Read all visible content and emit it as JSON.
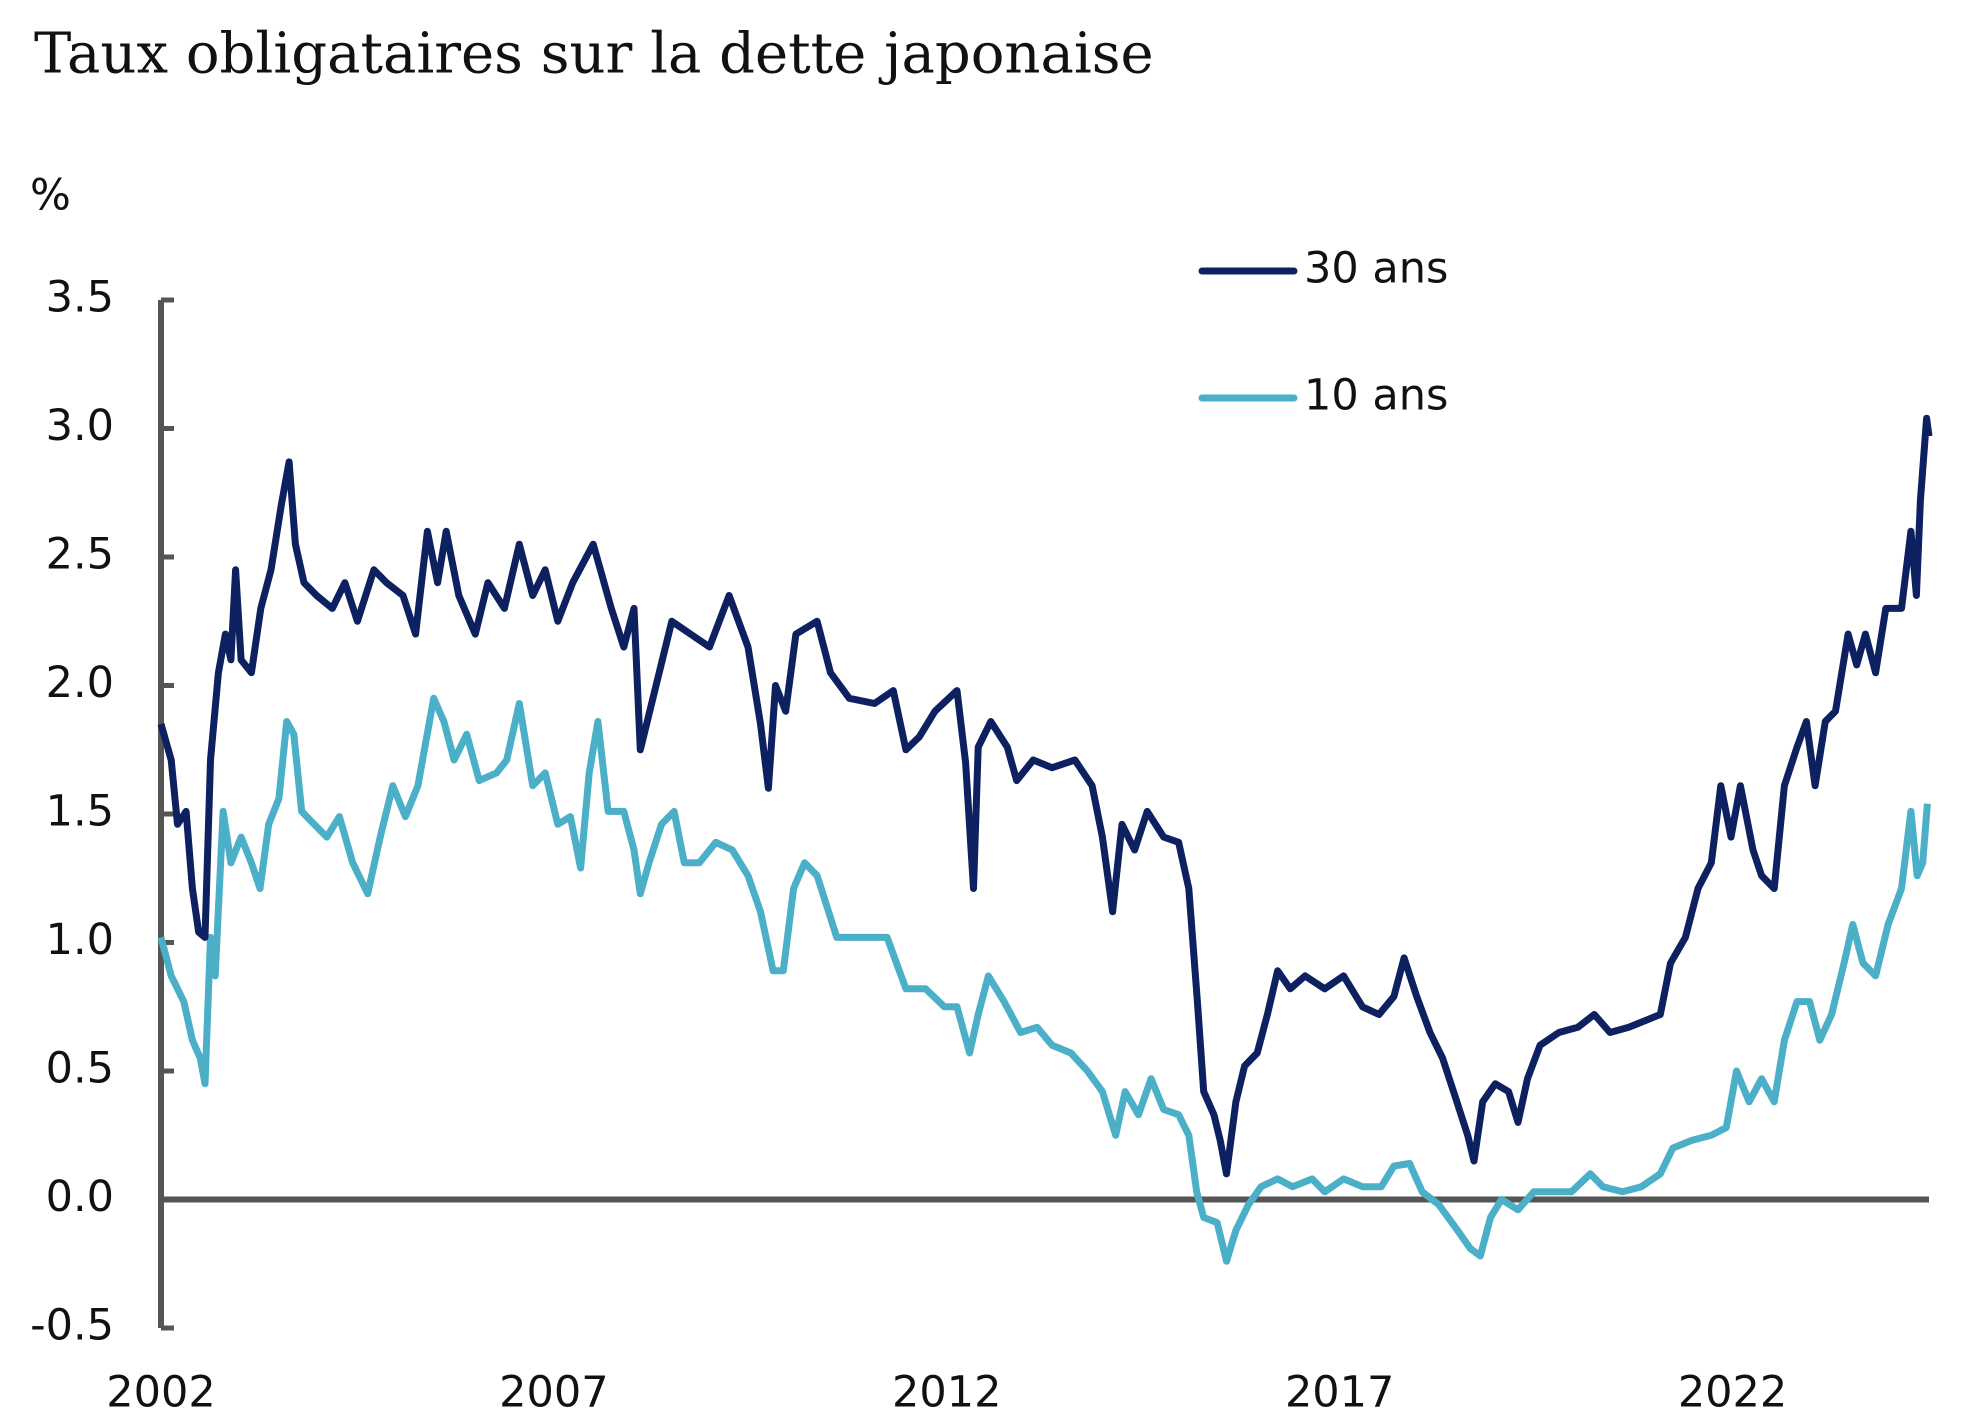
{
  "chart_data": {
    "type": "line",
    "title": "Taux obligataires sur la dette japonaise",
    "y_label": "%",
    "xlim": [
      2002,
      2024.5
    ],
    "xticks": [
      2002,
      2007,
      2012,
      2017,
      2022
    ],
    "ylim": [
      -0.5,
      3.5
    ],
    "yticks": [
      -0.5,
      {
        "value": 0,
        "label": "0.0"
      },
      0.5,
      {
        "value": 1,
        "label": "1.0"
      },
      1.5,
      {
        "value": 2,
        "label": "2.0"
      },
      2.5,
      {
        "value": 3,
        "label": "3.0"
      },
      3.5
    ],
    "grid": false,
    "legend": "upper right",
    "series": [
      {
        "name": "30 ans",
        "color": "#0d2160",
        "x": [
          2002.0,
          2002.13,
          2002.21,
          2002.32,
          2002.4,
          2002.48,
          2002.56,
          2002.63,
          2002.73,
          2002.82,
          2002.89,
          2002.95,
          2003.02,
          2003.15,
          2003.27,
          2003.4,
          2003.53,
          2003.63,
          2003.71,
          2003.82,
          2003.98,
          2004.18,
          2004.34,
          2004.5,
          2004.71,
          2004.87,
          2005.08,
          2005.24,
          2005.39,
          2005.52,
          2005.63,
          2005.79,
          2006.0,
          2006.16,
          2006.37,
          2006.56,
          2006.73,
          2006.89,
          2007.05,
          2007.24,
          2007.5,
          2007.73,
          2007.89,
          2008.02,
          2008.1,
          2008.26,
          2008.5,
          2008.74,
          2008.98,
          2009.23,
          2009.47,
          2009.63,
          2009.73,
          2009.82,
          2009.95,
          2010.08,
          2010.35,
          2010.52,
          2010.76,
          2011.08,
          2011.32,
          2011.48,
          2011.65,
          2011.85,
          2012.13,
          2012.24,
          2012.34,
          2012.4,
          2012.56,
          2012.77,
          2012.89,
          2013.1,
          2013.34,
          2013.63,
          2013.85,
          2013.98,
          2014.11,
          2014.23,
          2014.39,
          2014.55,
          2014.76,
          2014.95,
          2015.08,
          2015.19,
          2015.27,
          2015.4,
          2015.48,
          2015.56,
          2015.68,
          2015.79,
          2015.95,
          2016.08,
          2016.21,
          2016.37,
          2016.56,
          2016.81,
          2017.05,
          2017.29,
          2017.5,
          2017.69,
          2017.82,
          2017.98,
          2018.15,
          2018.31,
          2018.47,
          2018.63,
          2018.71,
          2018.82,
          2018.98,
          2019.15,
          2019.27,
          2019.39,
          2019.55,
          2019.79,
          2020.03,
          2020.24,
          2020.44,
          2020.68,
          2020.92,
          2021.08,
          2021.21,
          2021.4,
          2021.56,
          2021.73,
          2021.85,
          2021.98,
          2022.1,
          2022.26,
          2022.37,
          2022.53,
          2022.66,
          2022.82,
          2022.94,
          2023.05,
          2023.18,
          2023.31,
          2023.47,
          2023.58,
          2023.69,
          2023.82,
          2023.95,
          2024.15,
          2024.27,
          2024.34,
          2024.39,
          2024.47,
          2024.5
        ],
        "values": [
          1.85,
          1.71,
          1.46,
          1.51,
          1.21,
          1.04,
          1.02,
          1.71,
          2.05,
          2.2,
          2.1,
          2.45,
          2.1,
          2.05,
          2.3,
          2.45,
          2.7,
          2.87,
          2.55,
          2.4,
          2.35,
          2.3,
          2.4,
          2.25,
          2.45,
          2.4,
          2.35,
          2.2,
          2.6,
          2.4,
          2.6,
          2.35,
          2.2,
          2.4,
          2.3,
          2.55,
          2.35,
          2.45,
          2.25,
          2.4,
          2.55,
          2.3,
          2.15,
          2.3,
          1.75,
          1.95,
          2.25,
          2.2,
          2.15,
          2.35,
          2.15,
          1.85,
          1.6,
          2.0,
          1.9,
          2.2,
          2.25,
          2.05,
          1.95,
          1.93,
          1.98,
          1.75,
          1.8,
          1.9,
          1.98,
          1.7,
          1.21,
          1.76,
          1.86,
          1.76,
          1.63,
          1.71,
          1.68,
          1.71,
          1.61,
          1.41,
          1.12,
          1.46,
          1.36,
          1.51,
          1.41,
          1.39,
          1.21,
          0.77,
          0.42,
          0.33,
          0.23,
          0.1,
          0.38,
          0.52,
          0.57,
          0.72,
          0.89,
          0.82,
          0.87,
          0.82,
          0.87,
          0.75,
          0.72,
          0.79,
          0.94,
          0.79,
          0.65,
          0.55,
          0.4,
          0.25,
          0.15,
          0.38,
          0.45,
          0.42,
          0.3,
          0.47,
          0.6,
          0.65,
          0.67,
          0.72,
          0.65,
          0.67,
          0.7,
          0.72,
          0.92,
          1.02,
          1.21,
          1.31,
          1.61,
          1.41,
          1.61,
          1.36,
          1.26,
          1.21,
          1.61,
          1.76,
          1.86,
          1.61,
          1.86,
          1.9,
          2.2,
          2.08,
          2.2,
          2.05,
          2.3,
          2.3,
          2.6,
          2.35,
          2.72,
          3.04,
          2.97
        ]
      },
      {
        "name": "10 ans",
        "color": "#4bafc8",
        "x": [
          2002.0,
          2002.13,
          2002.29,
          2002.4,
          2002.5,
          2002.56,
          2002.63,
          2002.69,
          2002.79,
          2002.89,
          2003.02,
          2003.15,
          2003.26,
          2003.37,
          2003.5,
          2003.6,
          2003.69,
          2003.79,
          2003.95,
          2004.11,
          2004.27,
          2004.44,
          2004.63,
          2004.79,
          2004.95,
          2005.11,
          2005.27,
          2005.47,
          2005.6,
          2005.73,
          2005.89,
          2006.05,
          2006.27,
          2006.4,
          2006.56,
          2006.73,
          2006.89,
          2007.05,
          2007.21,
          2007.34,
          2007.45,
          2007.56,
          2007.69,
          2007.89,
          2008.02,
          2008.1,
          2008.21,
          2008.37,
          2008.53,
          2008.66,
          2008.85,
          2009.06,
          2009.27,
          2009.47,
          2009.63,
          2009.79,
          2009.92,
          2010.05,
          2010.19,
          2010.35,
          2010.6,
          2010.92,
          2011.24,
          2011.48,
          2011.73,
          2011.97,
          2012.13,
          2012.29,
          2012.4,
          2012.53,
          2012.73,
          2012.94,
          2013.15,
          2013.34,
          2013.58,
          2013.79,
          2013.98,
          2014.15,
          2014.27,
          2014.44,
          2014.6,
          2014.76,
          2014.95,
          2015.08,
          2015.18,
          2015.27,
          2015.44,
          2015.56,
          2015.68,
          2015.84,
          2016.0,
          2016.21,
          2016.4,
          2016.65,
          2016.81,
          2017.05,
          2017.29,
          2017.53,
          2017.69,
          2017.89,
          2018.05,
          2018.26,
          2018.5,
          2018.66,
          2018.79,
          2018.92,
          2019.06,
          2019.27,
          2019.47,
          2019.71,
          2019.95,
          2020.19,
          2020.35,
          2020.6,
          2020.84,
          2021.08,
          2021.24,
          2021.48,
          2021.73,
          2021.92,
          2022.05,
          2022.21,
          2022.37,
          2022.53,
          2022.66,
          2022.82,
          2022.98,
          2023.11,
          2023.26,
          2023.42,
          2023.53,
          2023.66,
          2023.82,
          2023.98,
          2024.15,
          2024.27,
          2024.35,
          2024.42,
          2024.48
        ],
        "values": [
          1.02,
          0.87,
          0.77,
          0.62,
          0.55,
          0.45,
          1.02,
          0.87,
          1.51,
          1.31,
          1.41,
          1.31,
          1.21,
          1.46,
          1.56,
          1.86,
          1.81,
          1.51,
          1.46,
          1.41,
          1.49,
          1.31,
          1.19,
          1.41,
          1.61,
          1.49,
          1.61,
          1.95,
          1.86,
          1.71,
          1.81,
          1.63,
          1.66,
          1.71,
          1.93,
          1.61,
          1.66,
          1.46,
          1.49,
          1.29,
          1.66,
          1.86,
          1.51,
          1.51,
          1.36,
          1.19,
          1.31,
          1.46,
          1.51,
          1.31,
          1.31,
          1.39,
          1.36,
          1.26,
          1.12,
          0.89,
          0.89,
          1.21,
          1.31,
          1.26,
          1.02,
          1.02,
          1.02,
          0.82,
          0.82,
          0.75,
          0.75,
          0.57,
          0.72,
          0.87,
          0.77,
          0.65,
          0.67,
          0.6,
          0.57,
          0.5,
          0.42,
          0.25,
          0.42,
          0.33,
          0.47,
          0.35,
          0.33,
          0.25,
          0.03,
          -0.07,
          -0.09,
          -0.24,
          -0.12,
          -0.02,
          0.05,
          0.08,
          0.05,
          0.08,
          0.03,
          0.08,
          0.05,
          0.05,
          0.13,
          0.14,
          0.03,
          -0.02,
          -0.12,
          -0.19,
          -0.22,
          -0.07,
          0.0,
          -0.04,
          0.03,
          0.03,
          0.03,
          0.1,
          0.05,
          0.03,
          0.05,
          0.1,
          0.2,
          0.23,
          0.25,
          0.28,
          0.5,
          0.38,
          0.47,
          0.38,
          0.62,
          0.77,
          0.77,
          0.62,
          0.72,
          0.92,
          1.07,
          0.92,
          0.87,
          1.07,
          1.21,
          1.51,
          1.26,
          1.31,
          1.54
        ]
      }
    ]
  }
}
